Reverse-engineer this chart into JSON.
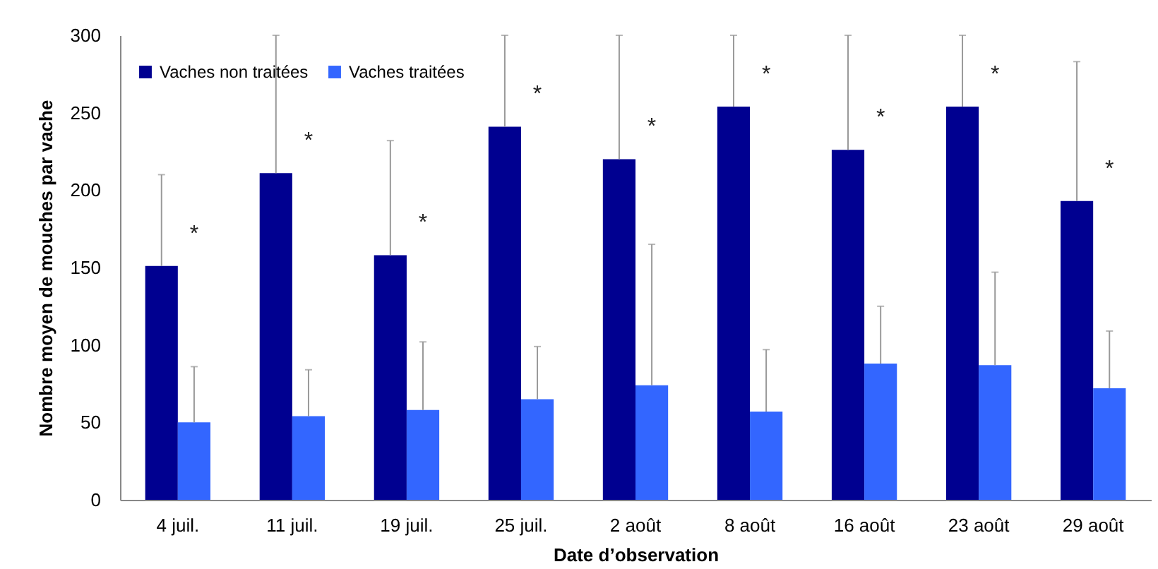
{
  "chart_data": {
    "type": "bar",
    "xlabel": "Date d’observation",
    "ylabel": "Nombre moyen de mouches par vache",
    "categories": [
      "4 juil.",
      "11 juil.",
      "19 juil.",
      "25 juil.",
      "2 août",
      "8 août",
      "16 août",
      "23 août",
      "29 août"
    ],
    "series": [
      {
        "name": "Vaches non traitées",
        "color": "#000090",
        "values": [
          151,
          211,
          158,
          241,
          220,
          254,
          226,
          254,
          193
        ],
        "errors": [
          [
            151,
            210
          ],
          [
            211,
            300
          ],
          [
            158,
            232
          ],
          [
            241,
            300
          ],
          [
            220,
            300
          ],
          [
            254,
            300
          ],
          [
            226,
            300
          ],
          [
            254,
            300
          ],
          [
            193,
            283
          ]
        ]
      },
      {
        "name": "Vaches traitées",
        "color": "#3366ff",
        "values": [
          50,
          54,
          58,
          65,
          74,
          57,
          88,
          87,
          72
        ],
        "errors": [
          [
            50,
            86
          ],
          [
            54,
            84
          ],
          [
            58,
            102
          ],
          [
            65,
            99
          ],
          [
            74,
            165
          ],
          [
            57,
            97
          ],
          [
            88,
            125
          ],
          [
            87,
            147
          ],
          [
            72,
            109
          ]
        ]
      }
    ],
    "ylim": [
      0,
      300
    ],
    "yticks": [
      0,
      50,
      100,
      150,
      200,
      250,
      300
    ],
    "grid": false,
    "legend": "top left",
    "annotations": [
      "*",
      "*",
      "*",
      "*",
      "*",
      "*",
      "*",
      "*",
      "*"
    ]
  }
}
